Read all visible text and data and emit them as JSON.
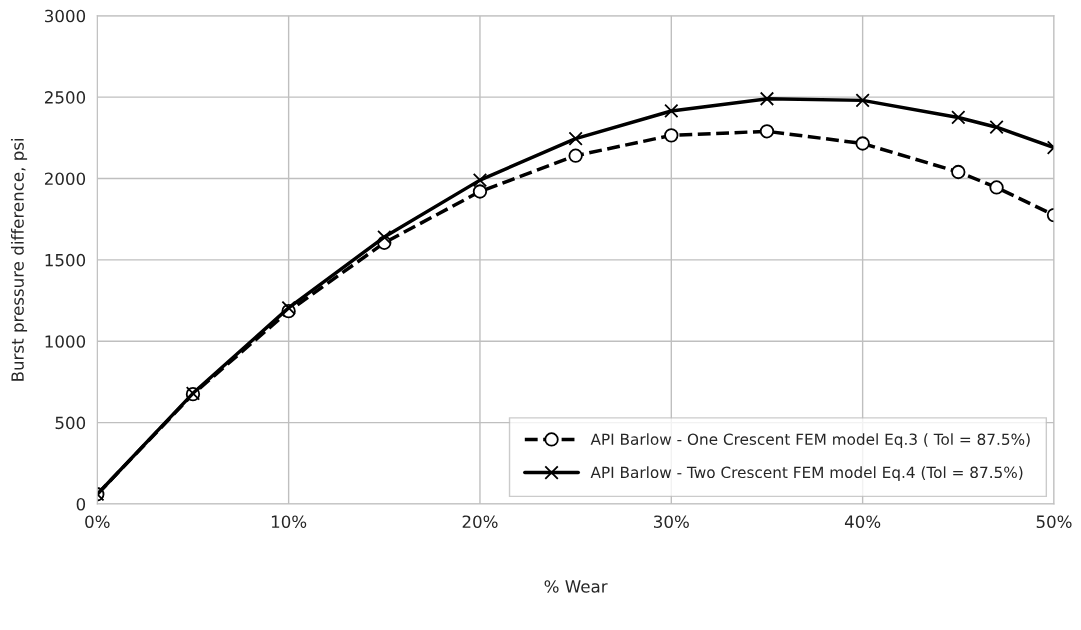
{
  "chart_data": {
    "type": "line",
    "xlabel": "% Wear",
    "ylabel": "Burst pressure difference, psi",
    "x": [
      0,
      5,
      10,
      15,
      20,
      25,
      30,
      35,
      40,
      45,
      47,
      50
    ],
    "series": [
      {
        "name": "API Barlow - One Crescent FEM model Eq.3 ( Tol = 87.5%)",
        "color": "#000000",
        "marker": "circle",
        "line_style": "dashed",
        "values": [
          60,
          675,
          1185,
          1605,
          1920,
          2140,
          2265,
          2290,
          2215,
          2040,
          1945,
          1775
        ]
      },
      {
        "name": "API Barlow - Two Crescent FEM model Eq.4 (Tol = 87.5%)",
        "color": "#000000",
        "marker": "cross",
        "line_style": "solid",
        "values": [
          60,
          680,
          1205,
          1640,
          1990,
          2245,
          2415,
          2490,
          2480,
          2375,
          2315,
          2190
        ]
      }
    ],
    "xlim": [
      0,
      50
    ],
    "ylim": [
      0,
      3000
    ],
    "xticks": [
      {
        "value": 0,
        "label": "0%"
      },
      {
        "value": 10,
        "label": "10%"
      },
      {
        "value": 20,
        "label": "20%"
      },
      {
        "value": 30,
        "label": "30%"
      },
      {
        "value": 40,
        "label": "40%"
      },
      {
        "value": 50,
        "label": "50%"
      }
    ],
    "yticks": [
      0,
      500,
      1000,
      1500,
      2000,
      2500,
      3000
    ],
    "grid": true,
    "legend": "bottom right"
  }
}
